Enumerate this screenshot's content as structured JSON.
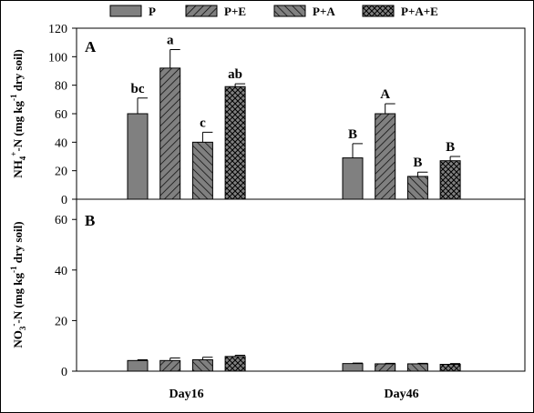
{
  "legend": [
    {
      "label": "P",
      "pattern": "solid"
    },
    {
      "label": "P+E",
      "pattern": "hatch-forward"
    },
    {
      "label": "P+A",
      "pattern": "hatch-back"
    },
    {
      "label": "P+A+E",
      "pattern": "crosshatch"
    }
  ],
  "colors": {
    "bar_fill": "#808080",
    "axis": "#000000",
    "background": "#ffffff"
  },
  "chart_data": [
    {
      "type": "bar",
      "panel_label": "A",
      "title": "",
      "ylabel_parts": [
        "NH",
        "4",
        "+",
        "-N (mg kg",
        "-1",
        " dry soil)"
      ],
      "xlabel": "",
      "categories": [
        "Day16",
        "Day46"
      ],
      "ylim": [
        0,
        120
      ],
      "yticks": [
        0,
        20,
        40,
        60,
        80,
        100,
        120
      ],
      "grid": false,
      "legend_position": "top",
      "series": [
        {
          "name": "P",
          "values": [
            60,
            29
          ],
          "errors": [
            11,
            10
          ],
          "letters": [
            "bc",
            "B"
          ]
        },
        {
          "name": "P+E",
          "values": [
            92,
            60
          ],
          "errors": [
            13,
            7
          ],
          "letters": [
            "a",
            "A"
          ]
        },
        {
          "name": "P+A",
          "values": [
            40,
            16
          ],
          "errors": [
            7,
            3
          ],
          "letters": [
            "c",
            "B"
          ]
        },
        {
          "name": "P+A+E",
          "values": [
            79,
            27
          ],
          "errors": [
            2,
            3
          ],
          "letters": [
            "ab",
            "B"
          ]
        }
      ]
    },
    {
      "type": "bar",
      "panel_label": "B",
      "title": "",
      "ylabel_parts": [
        "NO",
        "3",
        "-",
        "-N (mg kg",
        "-1",
        " dry soil)"
      ],
      "xlabel": "",
      "categories": [
        "Day16",
        "Day46"
      ],
      "ylim": [
        0,
        68
      ],
      "yticks": [
        0,
        20,
        40,
        60
      ],
      "grid": false,
      "series": [
        {
          "name": "P",
          "values": [
            4.2,
            3.0
          ],
          "errors": [
            0.3,
            0.2
          ],
          "letters": [
            "",
            ""
          ]
        },
        {
          "name": "P+E",
          "values": [
            4.2,
            2.9
          ],
          "errors": [
            1.0,
            0.2
          ],
          "letters": [
            "",
            ""
          ]
        },
        {
          "name": "P+A",
          "values": [
            4.5,
            2.9
          ],
          "errors": [
            1.0,
            0.2
          ],
          "letters": [
            "",
            ""
          ]
        },
        {
          "name": "P+A+E",
          "values": [
            5.8,
            2.7
          ],
          "errors": [
            0.5,
            0.3
          ],
          "letters": [
            "",
            ""
          ]
        }
      ]
    }
  ]
}
